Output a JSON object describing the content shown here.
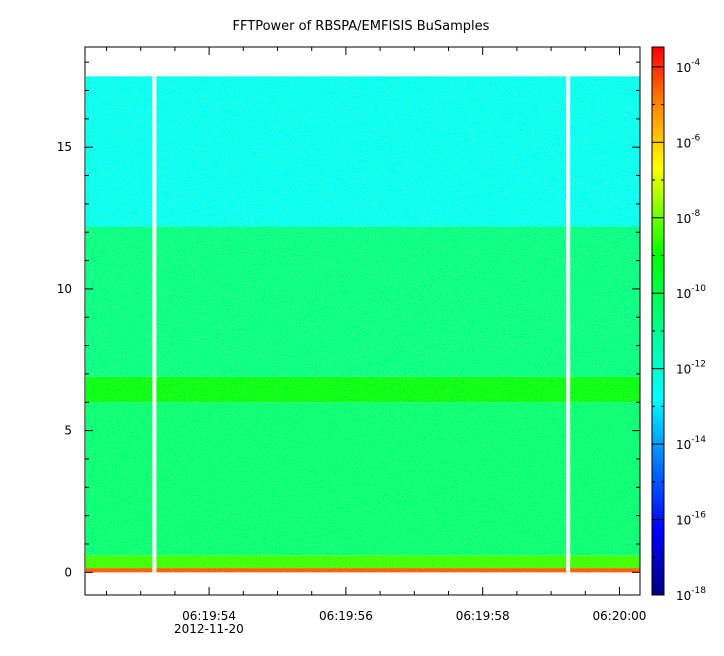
{
  "chart_data": {
    "type": "heatmap",
    "title": "FFTPower of RBSPA/EMFISIS  BuSamples",
    "xlabel": "",
    "ylabel": "",
    "x_tick_labels": [
      "06:19:54",
      "06:19:56",
      "06:19:58",
      "06:20:00"
    ],
    "x_tick_values_seconds": [
      54,
      56,
      58,
      60
    ],
    "x_date_label": "2012-11-20",
    "xlim_seconds": [
      52.2,
      60.3
    ],
    "ylim": [
      -0.8,
      18.5
    ],
    "y_tick_labels": [
      "0",
      "5",
      "10",
      "15"
    ],
    "y_tick_values": [
      0,
      5,
      10,
      15
    ],
    "data_freq_max": 17.5,
    "gaps_seconds": [
      53.2,
      59.25
    ],
    "bands": [
      {
        "y_range": [
          0,
          0.15
        ],
        "log_power": -4.5
      },
      {
        "y_range": [
          0.15,
          0.6
        ],
        "log_power": -8.5
      },
      {
        "y_range": [
          0.6,
          6.0
        ],
        "log_power": -10.6
      },
      {
        "y_range": [
          6.0,
          6.9
        ],
        "log_power": -9.2
      },
      {
        "y_range": [
          6.9,
          12.2
        ],
        "log_power": -10.8
      },
      {
        "y_range": [
          12.2,
          17.5
        ],
        "log_power": -12.6
      }
    ],
    "colorbar": {
      "scale": "log",
      "range_exponents": [
        -18,
        -3.5
      ],
      "tick_exponents": [
        -4,
        -6,
        -8,
        -10,
        -12,
        -14,
        -16,
        -18
      ],
      "base": "10"
    },
    "grid": false
  }
}
